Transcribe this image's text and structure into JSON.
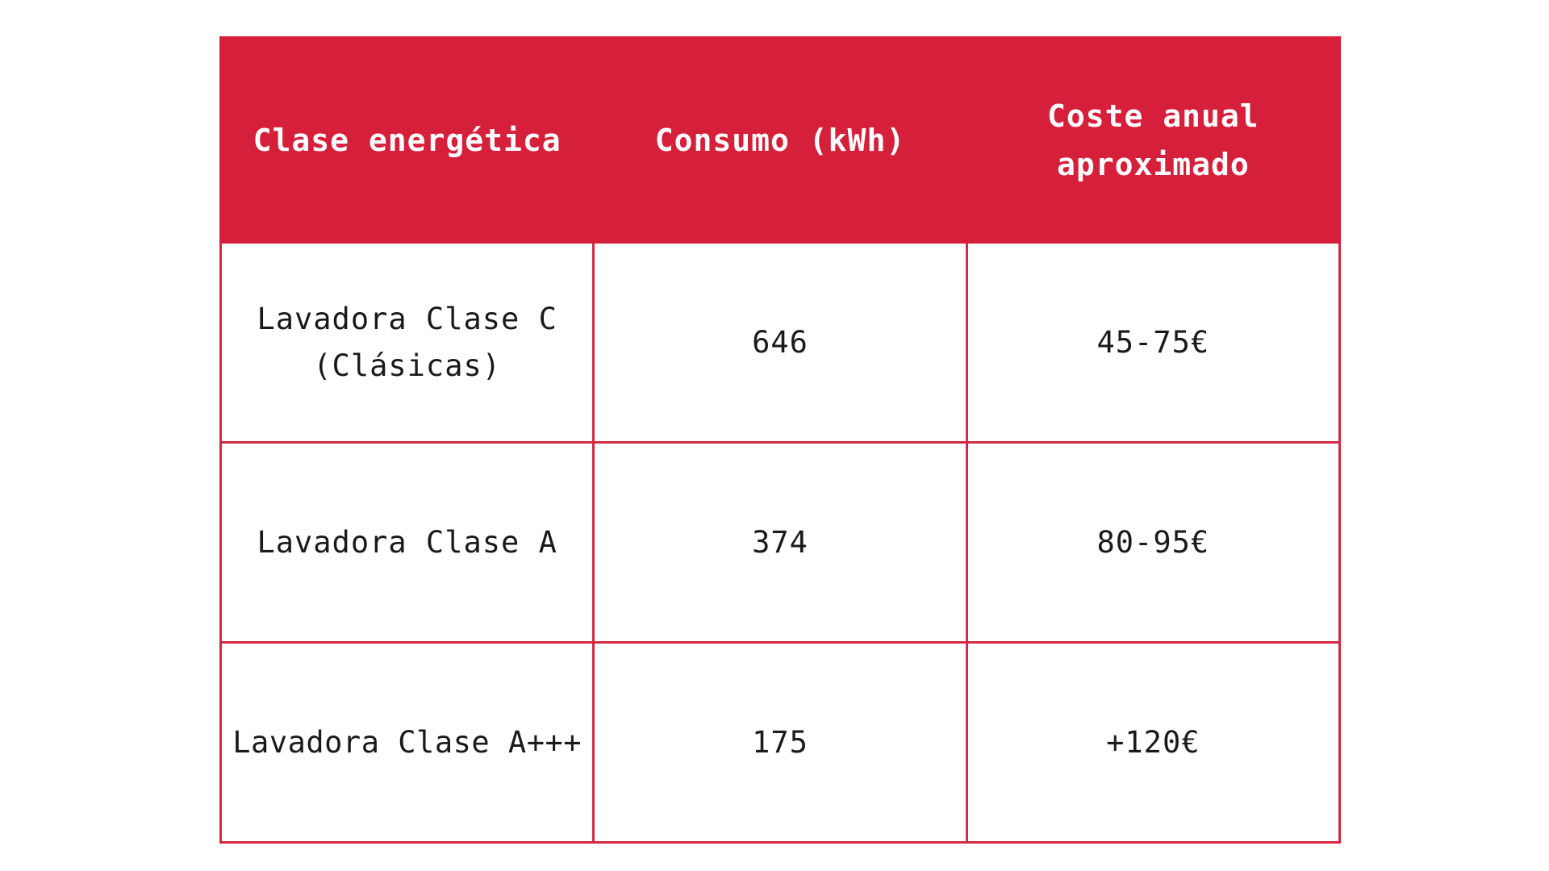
{
  "colors": {
    "header_bg": "#d61f3a",
    "border": "#d32a43",
    "header_text": "#ffffff",
    "body_text": "#1a1a1a"
  },
  "table": {
    "headers": [
      "Clase energética",
      "Consumo (kWh)",
      "Coste anual aproximado"
    ],
    "rows": [
      {
        "clase": "Lavadora Clase C (Clásicas)",
        "consumo": "646",
        "coste": "45-75€"
      },
      {
        "clase": "Lavadora Clase A",
        "consumo": "374",
        "coste": "80-95€"
      },
      {
        "clase": "Lavadora Clase A+++",
        "consumo": "175",
        "coste": "+120€"
      }
    ]
  }
}
